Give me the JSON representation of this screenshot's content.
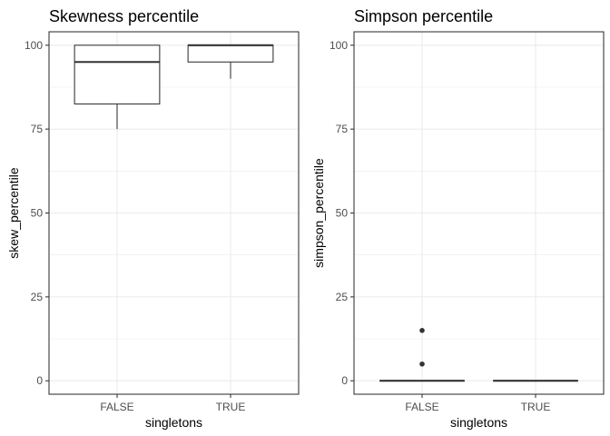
{
  "chart_data": [
    {
      "type": "boxplot",
      "title": "Skewness percentile",
      "xlabel": "singletons",
      "ylabel": "skew_percentile",
      "categories": [
        "FALSE",
        "TRUE"
      ],
      "ylim": [
        -4,
        104
      ],
      "yticks": [
        0,
        25,
        50,
        75,
        100
      ],
      "grid": true,
      "boxes": [
        {
          "category": "FALSE",
          "whisker_low": 75,
          "q1": 82.5,
          "median": 95,
          "q3": 100,
          "whisker_high": 100,
          "outliers": []
        },
        {
          "category": "TRUE",
          "whisker_low": 90,
          "q1": 95,
          "median": 100,
          "q3": 100,
          "whisker_high": 100,
          "outliers": []
        }
      ]
    },
    {
      "type": "boxplot",
      "title": "Simpson percentile",
      "xlabel": "singletons",
      "ylabel": "simpson_percentile",
      "categories": [
        "FALSE",
        "TRUE"
      ],
      "ylim": [
        -4,
        104
      ],
      "yticks": [
        0,
        25,
        50,
        75,
        100
      ],
      "grid": true,
      "boxes": [
        {
          "category": "FALSE",
          "whisker_low": 0,
          "q1": 0,
          "median": 0,
          "q3": 0,
          "whisker_high": 0,
          "outliers": [
            5,
            15
          ]
        },
        {
          "category": "TRUE",
          "whisker_low": 0,
          "q1": 0,
          "median": 0,
          "q3": 0,
          "whisker_high": 0,
          "outliers": []
        }
      ]
    }
  ]
}
